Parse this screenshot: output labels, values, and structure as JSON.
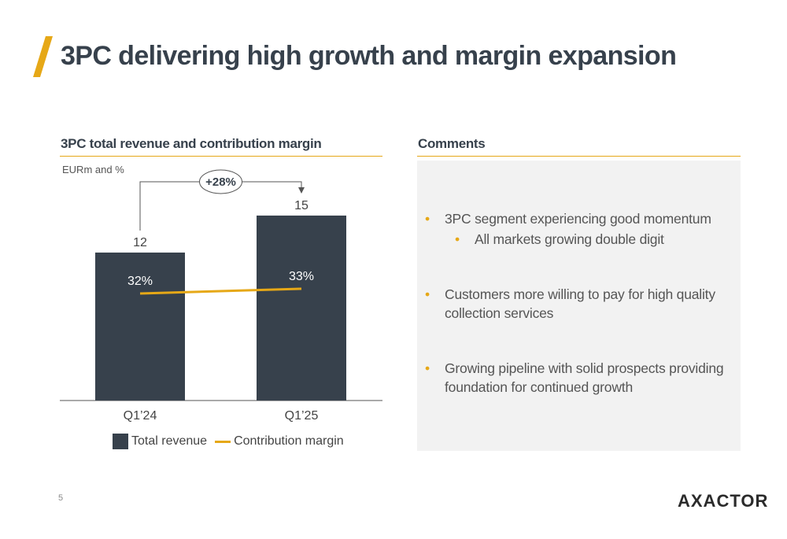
{
  "slide": {
    "title": "3PC delivering high growth and margin expansion",
    "page_number": "5",
    "logo_text": "AXACTOR",
    "accent_color": "#e6a817",
    "dark_color": "#37414c"
  },
  "chart_section": {
    "heading": "3PC total revenue and contribution margin",
    "unit": "EURm and %"
  },
  "chart_data": {
    "type": "bar",
    "categories": [
      "Q1’24",
      "Q1’25"
    ],
    "series": [
      {
        "name": "Total revenue",
        "type": "bar",
        "values": [
          12,
          15
        ],
        "labels": [
          "12",
          "15"
        ],
        "color": "#37414c"
      },
      {
        "name": "Contribution margin",
        "type": "line",
        "values": [
          32,
          33
        ],
        "labels": [
          "32%",
          "33%"
        ],
        "color": "#e6a817"
      }
    ],
    "growth_annotation": "+28%",
    "legend_position": "bottom",
    "grid": false,
    "xlabel": "",
    "ylabel": ""
  },
  "comments_section": {
    "heading": "Comments",
    "bullets": [
      "3PC segment experiencing good momentum",
      "All markets growing double digit",
      "Customers more willing to pay for high quality collection services",
      "Growing pipeline with solid prospects providing foundation for continued growth"
    ]
  }
}
